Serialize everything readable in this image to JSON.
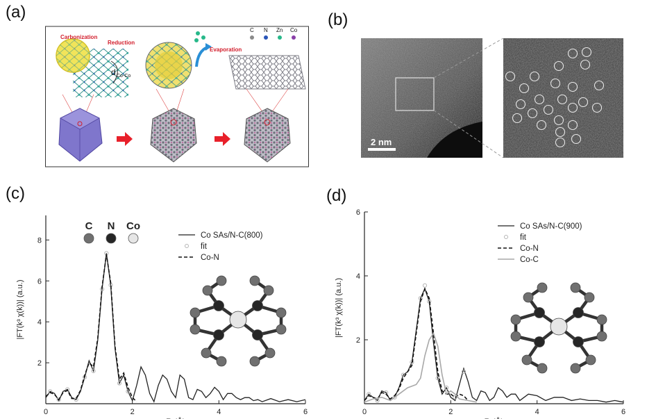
{
  "labels": {
    "a": "(a)",
    "b": "(b)",
    "c": "(c)",
    "d": "(d)"
  },
  "panel_a": {
    "carbonization": "Carbonization",
    "reduction": "Reduction",
    "evaporation": "Evaporation",
    "dlabel": "d",
    "dsub": "Co-Co",
    "legend": [
      {
        "label": "C",
        "color": "#8a8a8a"
      },
      {
        "label": "N",
        "color": "#2a56b8"
      },
      {
        "label": "Zn",
        "color": "#27b88a"
      },
      {
        "label": "Co",
        "color": "#8a3fa8"
      }
    ]
  },
  "panel_b": {
    "scalebar": "2 nm"
  },
  "chart_data": [
    {
      "type": "line",
      "panel": "c",
      "xlabel": "R (Å)",
      "ylabel": "|FT(k³ χ(k))| (a.u.)",
      "xlim": [
        0,
        6
      ],
      "ylim": [
        0,
        9.2
      ],
      "xticks": [
        0,
        2,
        4,
        6
      ],
      "yticks": [
        2,
        4,
        6,
        8
      ],
      "atoms": [
        {
          "label": "C",
          "color": "#707070"
        },
        {
          "label": "N",
          "color": "#262626"
        },
        {
          "label": "Co",
          "color": "#e6e6e6"
        }
      ],
      "legend": [
        {
          "label": "Co SAs/N-C(800)",
          "style": "solid"
        },
        {
          "label": "fit",
          "style": "circles"
        },
        {
          "label": "Co-N",
          "style": "dashed"
        }
      ],
      "series": [
        {
          "name": "Co SAs/N-C(800)",
          "style": "solid",
          "x": [
            0,
            0.1,
            0.2,
            0.3,
            0.4,
            0.5,
            0.6,
            0.7,
            0.8,
            0.9,
            1.0,
            1.1,
            1.2,
            1.3,
            1.4,
            1.5,
            1.6,
            1.7,
            1.8,
            1.9,
            2.0,
            2.1,
            2.2,
            2.3,
            2.4,
            2.5,
            2.6,
            2.7,
            2.8,
            2.9,
            3.0,
            3.1,
            3.2,
            3.3,
            3.4,
            3.5,
            3.6,
            3.7,
            3.8,
            3.9,
            4.0,
            4.1,
            4.2,
            4.3,
            4.4,
            4.5,
            4.6,
            4.7,
            4.8,
            4.9,
            5.0,
            5.2,
            5.4,
            5.6,
            5.8,
            6.0
          ],
          "y": [
            0.3,
            0.6,
            0.5,
            0.15,
            0.6,
            0.7,
            0.3,
            0.2,
            0.6,
            1.3,
            2.1,
            1.6,
            3.1,
            5.6,
            7.35,
            5.8,
            2.7,
            1.0,
            1.4,
            0.6,
            0.15,
            0.9,
            1.8,
            1.4,
            0.5,
            0.1,
            0.9,
            1.4,
            1.2,
            0.6,
            0.3,
            1.4,
            1.2,
            0.3,
            0.2,
            0.7,
            0.6,
            0.3,
            0.5,
            0.8,
            0.6,
            0.2,
            0.5,
            0.5,
            0.3,
            0.2,
            0.3,
            0.3,
            0.15,
            0.2,
            0.1,
            0.25,
            0.1,
            0.2,
            0.1,
            0.2
          ]
        },
        {
          "name": "fit",
          "style": "circles",
          "x": [
            0.1,
            0.3,
            0.5,
            0.7,
            0.9,
            1.1,
            1.3,
            1.4,
            1.5,
            1.7,
            1.9
          ],
          "y": [
            0.6,
            0.2,
            0.7,
            0.2,
            1.3,
            1.6,
            5.6,
            7.35,
            5.8,
            1.0,
            0.6
          ]
        },
        {
          "name": "Co-N",
          "style": "dashed",
          "x": [
            0,
            0.1,
            0.2,
            0.3,
            0.4,
            0.5,
            0.6,
            0.7,
            0.8,
            0.9,
            1.0,
            1.1,
            1.2,
            1.3,
            1.4,
            1.5,
            1.6,
            1.7,
            1.8,
            1.9,
            2.0,
            2.1
          ],
          "y": [
            0.35,
            0.55,
            0.45,
            0.2,
            0.55,
            0.65,
            0.25,
            0.25,
            0.65,
            1.4,
            2.0,
            1.8,
            3.2,
            5.7,
            7.3,
            5.9,
            2.8,
            1.2,
            1.5,
            0.8,
            0.3,
            0.1
          ]
        }
      ]
    },
    {
      "type": "line",
      "panel": "d",
      "xlabel": "R (Å)",
      "ylabel": "|FT(k³ χ(k))| (a.u.)",
      "xlim": [
        0,
        6
      ],
      "ylim": [
        0,
        6
      ],
      "xticks": [
        0,
        2,
        4,
        6
      ],
      "yticks": [
        2,
        4,
        6
      ],
      "legend": [
        {
          "label": "Co SAs/N-C(900)",
          "style": "solid"
        },
        {
          "label": "fit",
          "style": "circles"
        },
        {
          "label": "Co-N",
          "style": "dashed"
        },
        {
          "label": "Co-C",
          "style": "light"
        }
      ],
      "series": [
        {
          "name": "Co SAs/N-C(900)",
          "style": "solid",
          "x": [
            0,
            0.1,
            0.2,
            0.3,
            0.4,
            0.5,
            0.6,
            0.7,
            0.8,
            0.9,
            1.0,
            1.1,
            1.2,
            1.3,
            1.4,
            1.5,
            1.6,
            1.7,
            1.8,
            1.9,
            2.0,
            2.1,
            2.2,
            2.3,
            2.4,
            2.5,
            2.6,
            2.7,
            2.8,
            2.9,
            3.0,
            3.1,
            3.2,
            3.3,
            3.4,
            3.5,
            3.6,
            3.7,
            3.8,
            4.0,
            4.2,
            4.4,
            4.6,
            4.8,
            5.0,
            5.2,
            5.4,
            5.6,
            5.8,
            6.0
          ],
          "y": [
            0.1,
            0.3,
            0.2,
            0.1,
            0.4,
            0.35,
            0.1,
            0.2,
            0.5,
            0.9,
            1.0,
            1.3,
            2.3,
            3.3,
            3.6,
            3.2,
            1.9,
            0.8,
            0.3,
            0.5,
            0.2,
            0.1,
            0.6,
            1.1,
            0.7,
            0.2,
            0.1,
            0.4,
            0.35,
            0.1,
            0.2,
            0.5,
            0.4,
            0.2,
            0.3,
            0.3,
            0.1,
            0.2,
            0.3,
            0.25,
            0.1,
            0.2,
            0.2,
            0.1,
            0.15,
            0.1,
            0.1,
            0.05,
            0.1,
            0.05
          ]
        },
        {
          "name": "fit",
          "style": "circles",
          "x": [
            0.1,
            0.3,
            0.5,
            0.7,
            0.9,
            1.1,
            1.3,
            1.4,
            1.5,
            1.7,
            1.9,
            2.1,
            2.3
          ],
          "y": [
            0.3,
            0.1,
            0.35,
            0.2,
            0.9,
            1.3,
            3.3,
            3.7,
            3.2,
            0.8,
            0.5,
            0.2,
            1.0
          ]
        },
        {
          "name": "Co-N",
          "style": "dashed",
          "x": [
            0,
            0.1,
            0.2,
            0.3,
            0.4,
            0.5,
            0.6,
            0.7,
            0.8,
            0.9,
            1.0,
            1.1,
            1.2,
            1.3,
            1.4,
            1.5,
            1.6,
            1.7,
            1.8,
            1.9,
            2.0,
            2.1,
            2.2,
            2.3,
            2.4
          ],
          "y": [
            0.1,
            0.25,
            0.2,
            0.15,
            0.35,
            0.3,
            0.15,
            0.25,
            0.45,
            0.8,
            1.0,
            1.2,
            2.2,
            3.2,
            3.6,
            3.3,
            2.2,
            1.0,
            0.4,
            0.3,
            0.3,
            0.2,
            0.3,
            0.25,
            0.1
          ]
        },
        {
          "name": "Co-C",
          "style": "light",
          "x": [
            0,
            0.2,
            0.4,
            0.6,
            0.8,
            1.0,
            1.1,
            1.2,
            1.3,
            1.4,
            1.5,
            1.6,
            1.7,
            1.8,
            1.9,
            2.0,
            2.1,
            2.2,
            2.4,
            2.6
          ],
          "y": [
            0.05,
            0.15,
            0.2,
            0.1,
            0.3,
            0.5,
            0.55,
            0.6,
            0.8,
            1.5,
            2.0,
            2.2,
            1.8,
            0.9,
            0.3,
            0.4,
            0.3,
            0.15,
            0.1,
            0.05
          ]
        }
      ]
    }
  ]
}
